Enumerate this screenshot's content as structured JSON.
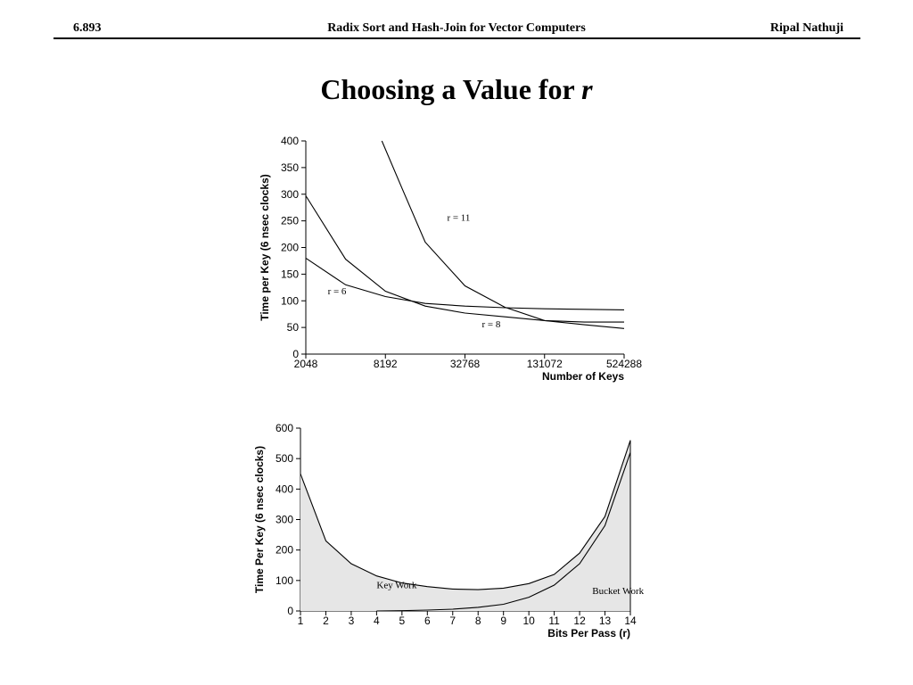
{
  "header": {
    "left": "6.893",
    "center": "Radix Sort and Hash-Join for Vector Computers",
    "right": "Ripal Nathuji"
  },
  "slide": {
    "title_main": "Choosing a Value for ",
    "title_var": "r"
  },
  "chart_data": [
    {
      "type": "line",
      "title": "",
      "xlabel": "Number of Keys",
      "ylabel": "Time per Key (6 nsec clocks)",
      "x_scale": "log2",
      "xlim": [
        2048,
        524288
      ],
      "ylim": [
        0,
        400
      ],
      "x_ticks": [
        2048,
        8192,
        32768,
        131072,
        524288
      ],
      "x_tick_labels": [
        "2048",
        "8192",
        "32768",
        "131072",
        "524288"
      ],
      "y_ticks": [
        0,
        50,
        100,
        150,
        200,
        250,
        300,
        350,
        400
      ],
      "grid": false,
      "series": [
        {
          "name": "r = 6",
          "label_x": 3000,
          "label_y": 112,
          "points": [
            [
              2048,
              180
            ],
            [
              4096,
              130
            ],
            [
              8192,
              108
            ],
            [
              16384,
              95
            ],
            [
              32768,
              90
            ],
            [
              65536,
              87
            ],
            [
              131072,
              85
            ],
            [
              262144,
              84
            ],
            [
              524288,
              83
            ]
          ]
        },
        {
          "name": "r = 8",
          "label_x": 44000,
          "label_y": 50,
          "points": [
            [
              2048,
              297
            ],
            [
              4096,
              178
            ],
            [
              8192,
              118
            ],
            [
              16384,
              90
            ],
            [
              32768,
              77
            ],
            [
              65536,
              70
            ],
            [
              131072,
              63
            ],
            [
              262144,
              60
            ],
            [
              524288,
              60
            ]
          ]
        },
        {
          "name": "r = 11",
          "label_x": 24000,
          "label_y": 250,
          "points": [
            [
              7700,
              400
            ],
            [
              11000,
              310
            ],
            [
              16384,
              210
            ],
            [
              32768,
              128
            ],
            [
              65536,
              88
            ],
            [
              131072,
              63
            ],
            [
              262144,
              55
            ],
            [
              524288,
              48
            ]
          ]
        }
      ]
    },
    {
      "type": "area",
      "title": "",
      "xlabel": "Bits Per Pass (r)",
      "ylabel": "Time Per Key (6 nsec clocks)",
      "xlim": [
        1,
        14
      ],
      "ylim": [
        0,
        600
      ],
      "x_ticks": [
        1,
        2,
        3,
        4,
        5,
        6,
        7,
        8,
        9,
        10,
        11,
        12,
        13,
        14
      ],
      "y_ticks": [
        0,
        100,
        200,
        300,
        400,
        500,
        600
      ],
      "grid": false,
      "series": [
        {
          "name": "Key Work",
          "label_x": 4.0,
          "label_y": 75,
          "points": [
            [
              1,
              450
            ],
            [
              2,
              230
            ],
            [
              3,
              155
            ],
            [
              4,
              115
            ],
            [
              5,
              92
            ],
            [
              6,
              80
            ],
            [
              7,
              72
            ],
            [
              8,
              70
            ],
            [
              9,
              75
            ],
            [
              10,
              90
            ],
            [
              11,
              120
            ],
            [
              12,
              190
            ],
            [
              13,
              310
            ],
            [
              14,
              560
            ]
          ]
        },
        {
          "name": "Bucket Work",
          "label_x": 12.5,
          "label_y": 55,
          "points": [
            [
              4,
              0
            ],
            [
              5,
              1
            ],
            [
              6,
              3
            ],
            [
              7,
              6
            ],
            [
              8,
              12
            ],
            [
              9,
              22
            ],
            [
              10,
              45
            ],
            [
              11,
              85
            ],
            [
              12,
              155
            ],
            [
              13,
              280
            ],
            [
              14,
              520
            ]
          ]
        }
      ],
      "fill_color": "#e6e6e6"
    }
  ]
}
